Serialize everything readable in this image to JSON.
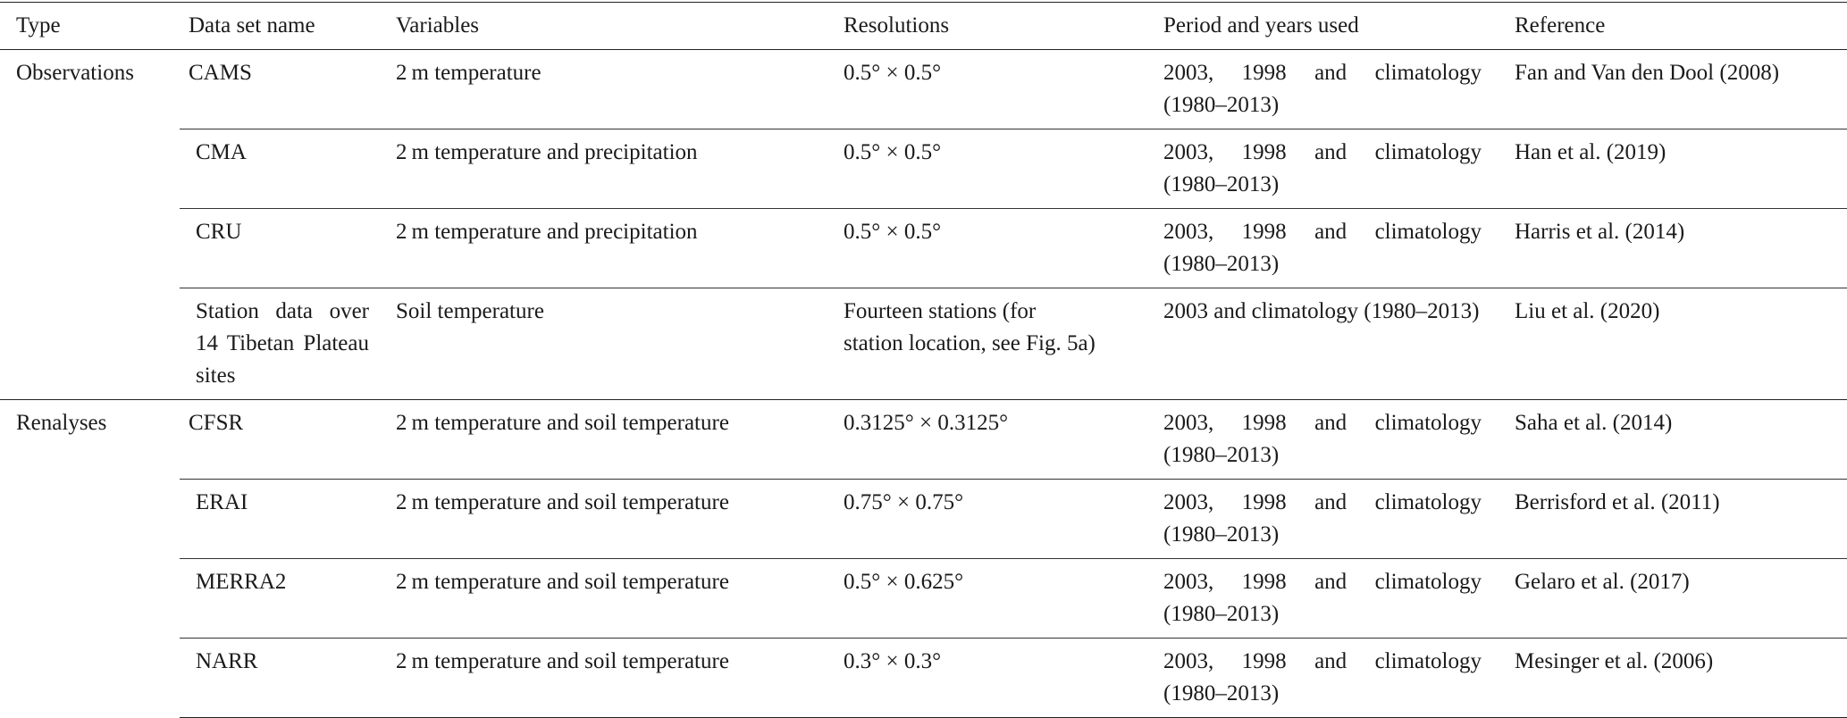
{
  "table": {
    "header": [
      "Type",
      "Data set name",
      "Variables",
      "Resolutions",
      "Period and years used",
      "Reference"
    ],
    "groups": [
      {
        "type": "Observations",
        "rows": [
          [
            "CAMS",
            "2 m temperature",
            "0.5° × 0.5°",
            "2003, 1998 and climatology (1980–2013)",
            "Fan and Van den Dool (2008)"
          ],
          [
            "CMA",
            "2 m temperature and precipitation",
            "0.5° × 0.5°",
            "2003, 1998 and climatology (1980–2013)",
            "Han et al. (2019)"
          ],
          [
            "CRU",
            "2 m temperature and precipitation",
            "0.5° × 0.5°",
            "2003, 1998 and climatology (1980–2013)",
            "Harris et al. (2014)"
          ],
          [
            "Station data over 14 Tibetan Plateau sites",
            "Soil temperature",
            "Fourteen stations (for station location, see Fig. 5a)",
            "2003 and climatology (1980–2013)",
            "Liu et al. (2020)"
          ]
        ]
      },
      {
        "type": "Renalyses",
        "rows": [
          [
            "CFSR",
            "2 m temperature and soil temperature",
            "0.3125° × 0.3125°",
            "2003, 1998 and climatology (1980–2013)",
            "Saha et al. (2014)"
          ],
          [
            "ERAI",
            "2 m temperature and soil temperature",
            "0.75° × 0.75°",
            "2003, 1998 and climatology (1980–2013)",
            "Berrisford et al. (2011)"
          ],
          [
            "MERRA2",
            "2 m temperature and soil temperature",
            "0.5° × 0.625°",
            "2003, 1998 and climatology (1980–2013)",
            "Gelaro et al. (2017)"
          ],
          [
            "NARR",
            "2 m temperature and soil temperature",
            "0.3° × 0.3°",
            "2003, 1998 and climatology (1980–2013)",
            "Mesinger et al. (2006)"
          ]
        ]
      }
    ]
  }
}
